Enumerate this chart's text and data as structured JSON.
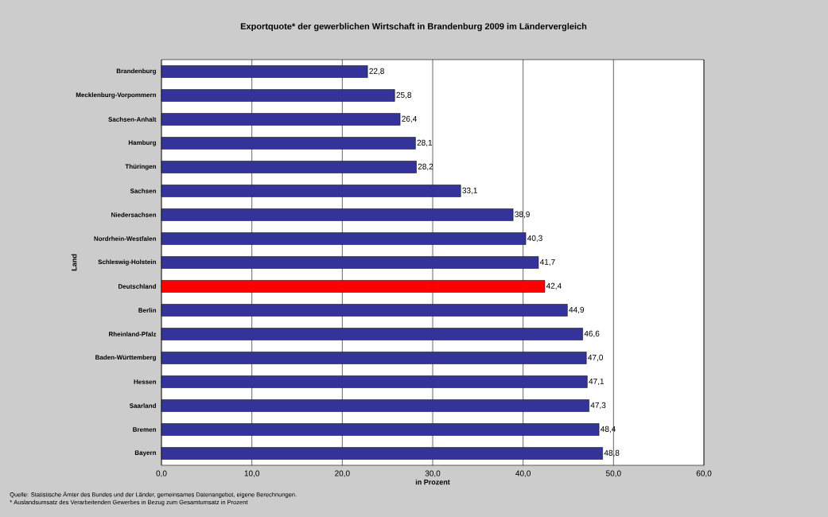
{
  "chart_data": {
    "type": "bar",
    "orientation": "horizontal",
    "title": "Exportquote* der gewerblichen Wirtschaft in Brandenburg 2009 im Ländervergleich",
    "xlabel": "in Prozent",
    "ylabel": "Land",
    "categories": [
      "Brandenburg",
      "Mecklenburg-Vorpommern",
      "Sachsen-Anhalt",
      "Hamburg",
      "Thüringen",
      "Sachsen",
      "Niedersachsen",
      "Nordrhein-Westfalen",
      "Schleswig-Holstein",
      "Deutschland",
      "Berlin",
      "Rheinland-Pfalz",
      "Baden-Württemberg",
      "Hessen",
      "Saarland",
      "Bremen",
      "Bayern"
    ],
    "values": [
      22.8,
      25.8,
      26.4,
      28.1,
      28.2,
      33.1,
      38.9,
      40.3,
      41.7,
      42.4,
      44.9,
      46.6,
      47.0,
      47.1,
      47.3,
      48.4,
      48.8
    ],
    "value_labels": [
      "22,8",
      "25,8",
      "26,4",
      "28,1",
      "28,2",
      "33,1",
      "38,9",
      "40,3",
      "41,7",
      "42,4",
      "44,9",
      "46,6",
      "47,0",
      "47,1",
      "47,3",
      "48,4",
      "48,8"
    ],
    "colors": [
      "#333399",
      "#333399",
      "#333399",
      "#333399",
      "#333399",
      "#333399",
      "#333399",
      "#333399",
      "#333399",
      "#ff0000",
      "#333399",
      "#333399",
      "#333399",
      "#333399",
      "#333399",
      "#333399",
      "#333399"
    ],
    "xlim": [
      0,
      60
    ],
    "xticks": [
      {
        "value": 0,
        "label": "0,0"
      },
      {
        "value": 10,
        "label": "10,0"
      },
      {
        "value": 20,
        "label": "20,0"
      },
      {
        "value": 30,
        "label": "30,0"
      },
      {
        "value": 40,
        "label": "40,0"
      },
      {
        "value": 50,
        "label": "50,0"
      },
      {
        "value": 60,
        "label": "60,0"
      }
    ],
    "grid": "x",
    "annotations": [
      "Quelle: Statistische Ämter des Bundes und der Länder, gemeinsames Datenangebot, eigene Berechnungen.",
      "* Auslandsumsatz des Verarbeitenden Gewerbes in Bezug zum Gesamtumsatz in Prozent"
    ]
  }
}
